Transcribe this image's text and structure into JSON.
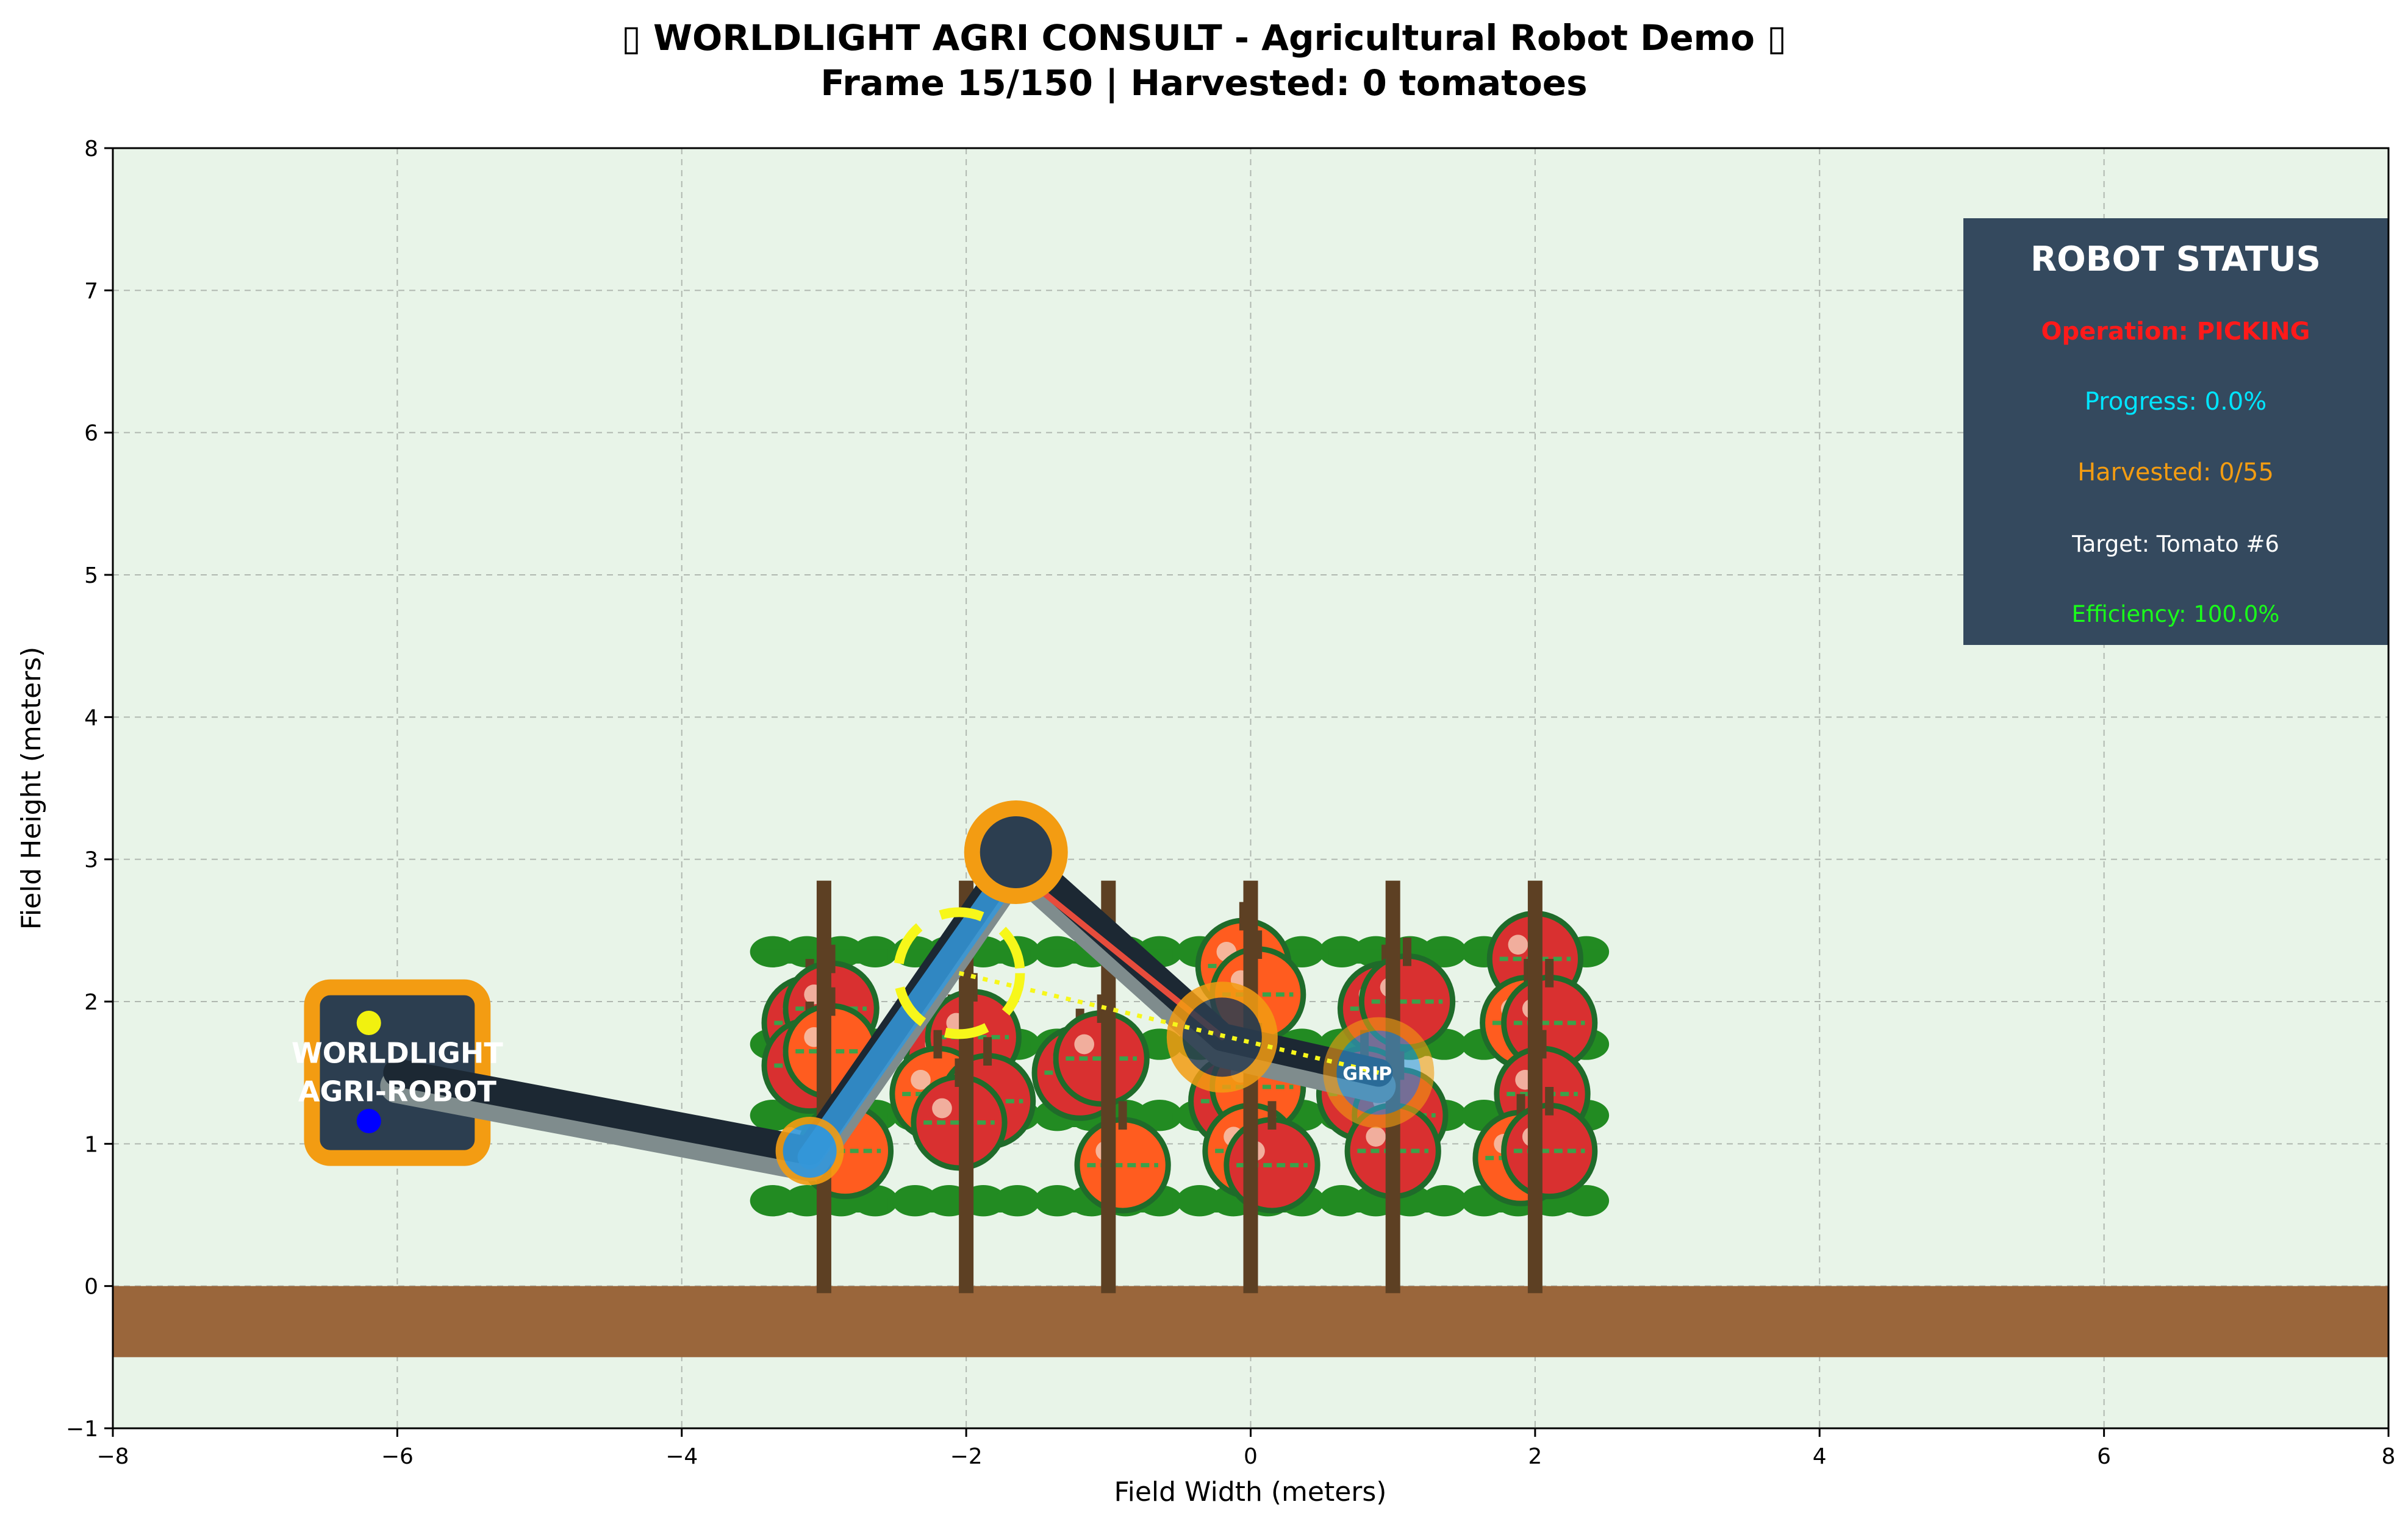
{
  "figure": {
    "title_line1": "▯ WORLDLIGHT AGRI CONSULT - Agricultural Robot Demo ▯",
    "title_line2": "Frame 15/150 | Harvested: 0 tomatoes"
  },
  "chart_data": {
    "type": "scatter",
    "title": "▯ WORLDLIGHT AGRI CONSULT - Agricultural Robot Demo ▯ Frame 15/150 | Harvested: 0 tomatoes",
    "xlabel": "Field Width (meters)",
    "ylabel": "Field Height (meters)",
    "xlim": [
      -8,
      8
    ],
    "ylim": [
      -1,
      8
    ],
    "xticks": [
      "−8",
      "−6",
      "−4",
      "−2",
      "0",
      "2",
      "4",
      "6",
      "8"
    ],
    "xtick_values": [
      -8,
      -6,
      -4,
      -2,
      0,
      2,
      4,
      6,
      8
    ],
    "yticks": [
      "−1",
      "0",
      "1",
      "2",
      "3",
      "4",
      "5",
      "6",
      "7",
      "8"
    ],
    "ytick_values": [
      -1,
      0,
      1,
      2,
      3,
      4,
      5,
      6,
      7,
      8
    ],
    "grid": true,
    "ground": {
      "y_top": 0,
      "y_bottom": -0.5,
      "color": "#9a663b"
    },
    "background_color": "#e8f4e8",
    "robot_base": {
      "center": [
        -6,
        1.5
      ],
      "width": 1.2,
      "height": 1.2,
      "label_lines": [
        "WORLDLIGHT",
        "AGRI-ROBOT"
      ]
    },
    "arm": {
      "joints": [
        [
          -6,
          1.5
        ],
        [
          -3.1,
          0.95
        ],
        [
          -1.65,
          3.05
        ],
        [
          -0.2,
          1.75
        ],
        [
          0.9,
          1.5
        ]
      ],
      "gripper": [
        0.9,
        1.5
      ],
      "gripper_label": "GRIP",
      "target_point": [
        -2.05,
        2.2
      ]
    },
    "plant_rows": [
      {
        "x": -3.0,
        "tomatoes": [
          [
            -3.1,
            1.85,
            "#d93030"
          ],
          [
            -2.95,
            1.95,
            "#d93030"
          ],
          [
            -3.1,
            1.55,
            "#d93030"
          ],
          [
            -2.95,
            1.65,
            "#ff5c1f"
          ],
          [
            -2.85,
            0.95,
            "#ff5c1f"
          ]
        ]
      },
      {
        "x": -2.0,
        "tomatoes": [
          [
            -2.1,
            1.6,
            "#d93030"
          ],
          [
            -1.95,
            1.75,
            "#d93030"
          ],
          [
            -2.2,
            1.35,
            "#ff5c1f"
          ],
          [
            -1.85,
            1.3,
            "#d93030"
          ],
          [
            -2.05,
            1.15,
            "#d93030"
          ]
        ]
      },
      {
        "x": -1.0,
        "tomatoes": [
          [
            -1.2,
            1.5,
            "#d93030"
          ],
          [
            -1.05,
            1.6,
            "#d93030"
          ],
          [
            -0.9,
            0.85,
            "#ff5c1f"
          ]
        ]
      },
      {
        "x": 0.0,
        "tomatoes": [
          [
            -0.05,
            2.25,
            "#ff5c1f"
          ],
          [
            0.05,
            2.05,
            "#ff5c1f"
          ],
          [
            -0.1,
            1.3,
            "#d93030"
          ],
          [
            0.05,
            1.4,
            "#ff5c1f"
          ],
          [
            0.0,
            0.95,
            "#ff5c1f"
          ],
          [
            0.15,
            0.85,
            "#d93030"
          ]
        ]
      },
      {
        "x": 1.0,
        "tomatoes": [
          [
            0.95,
            1.95,
            "#d93030"
          ],
          [
            1.1,
            2.0,
            "#d93030"
          ],
          [
            0.8,
            1.35,
            "#d93030"
          ],
          [
            1.05,
            1.2,
            "#d93030"
          ],
          [
            1.0,
            0.95,
            "#d93030"
          ]
        ]
      },
      {
        "x": 2.0,
        "tomatoes": [
          [
            2.0,
            2.3,
            "#d93030"
          ],
          [
            1.95,
            1.85,
            "#ff5c1f"
          ],
          [
            2.1,
            1.85,
            "#d93030"
          ],
          [
            2.05,
            1.35,
            "#d93030"
          ],
          [
            1.9,
            0.9,
            "#ff5c1f"
          ],
          [
            2.1,
            0.95,
            "#d93030"
          ]
        ]
      }
    ]
  },
  "status_panel": {
    "title": "ROBOT STATUS",
    "operation": "Operation: PICKING",
    "progress": "Progress: 0.0%",
    "harvested": "Harvested: 0/55",
    "target": "Target: Tomato #6",
    "efficiency": "Efficiency: 100.0%",
    "colors": {
      "background": "#34495e",
      "title": "#ffffff",
      "operation": "#ff1a1a",
      "progress": "#00e5ff",
      "harvested": "#f39c12",
      "target": "#ffffff",
      "efficiency": "#1aff1a"
    }
  },
  "colors": {
    "robot_body": "#2c3e50",
    "robot_outline": "#f39c12",
    "arm_dark": "#1c2833",
    "arm_light": "#7f8c8d",
    "arm_accent_blue": "#3498db",
    "arm_accent_red": "#e74c3c",
    "led_yellow": "#f1f10f",
    "led_blue": "#0000ff",
    "stem": "#5d4023",
    "leaf": "#228b22",
    "target_ring": "#f7f71a"
  }
}
